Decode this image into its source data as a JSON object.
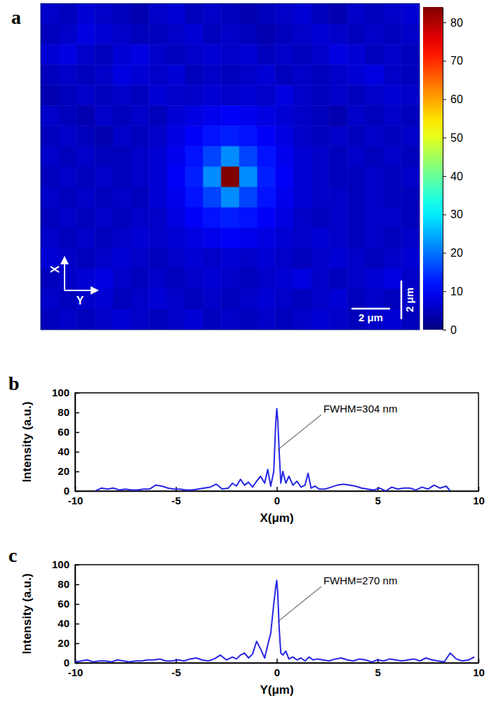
{
  "chart_data": [
    {
      "panel": "a",
      "type": "heatmap",
      "arrow_labels": [
        "X",
        "Y"
      ],
      "xlim": [
        0,
        19.6
      ],
      "ylim": [
        0,
        16.9
      ],
      "tick_labels": false,
      "cells": [
        [
          6,
          5,
          7,
          6,
          5,
          4,
          6,
          7,
          5,
          6,
          5,
          4,
          5,
          6,
          7,
          5,
          4,
          6,
          5,
          6,
          7
        ],
        [
          5,
          6,
          8,
          7,
          6,
          5,
          5,
          6,
          7,
          5,
          6,
          5,
          4,
          5,
          6,
          7,
          6,
          5,
          6,
          5,
          6
        ],
        [
          7,
          8,
          6,
          5,
          7,
          8,
          6,
          5,
          6,
          7,
          6,
          7,
          5,
          6,
          5,
          6,
          8,
          7,
          5,
          6,
          5
        ],
        [
          5,
          6,
          5,
          6,
          8,
          7,
          6,
          7,
          5,
          6,
          5,
          6,
          7,
          5,
          6,
          5,
          6,
          7,
          8,
          6,
          5
        ],
        [
          4,
          5,
          6,
          5,
          6,
          5,
          7,
          6,
          6,
          7,
          6,
          7,
          6,
          8,
          6,
          5,
          6,
          5,
          6,
          7,
          6
        ],
        [
          6,
          5,
          4,
          6,
          5,
          6,
          5,
          7,
          8,
          9,
          10,
          9,
          8,
          7,
          6,
          5,
          4,
          6,
          5,
          6,
          5
        ],
        [
          5,
          6,
          5,
          4,
          6,
          5,
          6,
          8,
          10,
          12,
          13,
          12,
          10,
          8,
          6,
          5,
          6,
          5,
          6,
          5,
          6
        ],
        [
          6,
          5,
          6,
          5,
          5,
          6,
          7,
          9,
          12,
          16,
          22,
          16,
          12,
          9,
          7,
          6,
          5,
          6,
          5,
          6,
          5
        ],
        [
          5,
          6,
          5,
          6,
          5,
          6,
          7,
          10,
          13,
          22,
          84,
          22,
          13,
          10,
          7,
          6,
          5,
          5,
          6,
          5,
          6
        ],
        [
          6,
          5,
          6,
          5,
          6,
          5,
          7,
          9,
          12,
          16,
          22,
          16,
          12,
          9,
          7,
          6,
          6,
          5,
          6,
          5,
          5
        ],
        [
          5,
          6,
          5,
          6,
          5,
          6,
          6,
          8,
          10,
          12,
          13,
          12,
          10,
          8,
          6,
          5,
          6,
          5,
          6,
          6,
          5
        ],
        [
          6,
          5,
          6,
          5,
          6,
          7,
          6,
          7,
          8,
          9,
          10,
          9,
          8,
          7,
          6,
          7,
          6,
          5,
          6,
          5,
          6
        ],
        [
          7,
          6,
          5,
          6,
          7,
          6,
          5,
          6,
          7,
          6,
          7,
          6,
          7,
          6,
          5,
          6,
          7,
          6,
          5,
          6,
          7
        ],
        [
          5,
          6,
          7,
          8,
          6,
          5,
          6,
          5,
          6,
          7,
          6,
          5,
          6,
          7,
          8,
          6,
          5,
          6,
          7,
          8,
          6
        ],
        [
          6,
          5,
          6,
          7,
          5,
          6,
          7,
          6,
          5,
          6,
          5,
          6,
          7,
          6,
          5,
          6,
          7,
          5,
          6,
          5,
          6
        ],
        [
          5,
          6,
          5,
          6,
          7,
          6,
          5,
          6,
          7,
          5,
          6,
          5,
          6,
          5,
          6,
          7,
          6,
          5,
          6,
          7,
          5
        ]
      ],
      "colorbar": {
        "range": [
          0,
          84
        ],
        "ticks": [
          0,
          10,
          20,
          30,
          40,
          50,
          60,
          70,
          80
        ]
      },
      "scale_bars": [
        {
          "label": "2 μm",
          "length": 2,
          "orientation": "horizontal"
        },
        {
          "label": "2 μm",
          "length": 2,
          "orientation": "vertical"
        }
      ]
    },
    {
      "panel": "b",
      "type": "line",
      "xlabel": "X(μm)",
      "ylabel": "Intensity (a.u.)",
      "x": [
        -9,
        -8.7,
        -8.4,
        -8.1,
        -7.8,
        -7.5,
        -7.2,
        -6.9,
        -6.6,
        -6.3,
        -6.0,
        -5.7,
        -5.4,
        -5.1,
        -4.8,
        -4.5,
        -4.2,
        -3.9,
        -3.6,
        -3.3,
        -3.0,
        -2.7,
        -2.4,
        -2.2,
        -2.0,
        -1.8,
        -1.6,
        -1.4,
        -1.2,
        -1.0,
        -0.8,
        -0.6,
        -0.45,
        -0.3,
        -0.15,
        -0.05,
        0,
        0.05,
        0.12,
        0.2,
        0.3,
        0.45,
        0.6,
        0.8,
        1.0,
        1.2,
        1.4,
        1.55,
        1.7,
        1.9,
        2.1,
        2.4,
        2.7,
        3.0,
        3.3,
        3.6,
        3.9,
        4.2,
        4.5,
        4.8,
        5.1,
        5.4,
        5.7,
        6.0,
        6.3,
        6.6,
        6.9,
        7.2,
        7.5,
        7.8,
        8.1,
        8.4,
        8.6
      ],
      "series": [
        {
          "color": "#2626e6",
          "values": [
            0,
            3,
            2,
            3,
            1,
            2,
            1,
            1,
            2,
            2,
            6,
            5,
            3,
            2,
            2,
            1,
            1,
            2,
            3,
            4,
            7,
            2,
            3,
            8,
            5,
            12,
            6,
            9,
            4,
            10,
            15,
            8,
            22,
            5,
            20,
            70,
            84,
            72,
            40,
            8,
            20,
            8,
            15,
            6,
            10,
            4,
            6,
            18,
            3,
            5,
            2,
            2,
            4,
            6,
            7,
            6,
            5,
            3,
            2,
            1,
            3,
            0,
            4,
            2,
            3,
            3,
            1,
            4,
            2,
            6,
            3,
            5,
            0
          ]
        }
      ],
      "xlim": [
        -10,
        10
      ],
      "xticks": [
        -10,
        -5,
        0,
        5,
        10
      ],
      "ylim": [
        0,
        100
      ],
      "yticks": [
        0,
        20,
        40,
        60,
        80,
        100
      ],
      "annotations": [
        {
          "text": "FWHM=304 nm",
          "x": 0.05,
          "y": 42
        }
      ]
    },
    {
      "panel": "c",
      "type": "line",
      "xlabel": "Y(μm)",
      "ylabel": "Intensity (a.u.)",
      "x": [
        -10,
        -9.7,
        -9.4,
        -9.1,
        -8.8,
        -8.5,
        -8.2,
        -7.9,
        -7.6,
        -7.3,
        -7.0,
        -6.7,
        -6.4,
        -6.1,
        -5.8,
        -5.5,
        -5.2,
        -4.9,
        -4.6,
        -4.3,
        -4.0,
        -3.7,
        -3.4,
        -3.1,
        -2.8,
        -2.5,
        -2.2,
        -2.0,
        -1.8,
        -1.6,
        -1.4,
        -1.2,
        -1.0,
        -0.8,
        -0.6,
        -0.45,
        -0.3,
        -0.15,
        -0.05,
        0,
        0.05,
        0.12,
        0.2,
        0.3,
        0.45,
        0.6,
        0.8,
        1.0,
        1.2,
        1.4,
        1.6,
        1.8,
        2.0,
        2.3,
        2.6,
        2.9,
        3.2,
        3.5,
        3.8,
        4.1,
        4.4,
        4.7,
        5.0,
        5.3,
        5.6,
        5.9,
        6.2,
        6.5,
        6.8,
        7.1,
        7.4,
        7.7,
        8.0,
        8.3,
        8.6,
        8.9,
        9.2,
        9.5,
        9.8
      ],
      "series": [
        {
          "color": "#2626e6",
          "values": [
            1,
            2,
            3,
            1,
            2,
            2,
            1,
            3,
            2,
            1,
            2,
            2,
            3,
            3,
            4,
            2,
            2,
            3,
            2,
            4,
            5,
            3,
            2,
            4,
            8,
            3,
            6,
            4,
            8,
            10,
            5,
            9,
            22,
            14,
            5,
            18,
            30,
            60,
            78,
            84,
            70,
            35,
            10,
            8,
            12,
            4,
            6,
            3,
            5,
            2,
            6,
            3,
            4,
            3,
            2,
            4,
            5,
            3,
            2,
            4,
            3,
            1,
            3,
            2,
            4,
            3,
            2,
            3,
            4,
            2,
            5,
            3,
            2,
            1,
            10,
            4,
            2,
            3,
            6
          ]
        }
      ],
      "xlim": [
        -10,
        10
      ],
      "xticks": [
        -10,
        -5,
        0,
        5,
        10
      ],
      "ylim": [
        0,
        100
      ],
      "yticks": [
        0,
        20,
        40,
        60,
        80,
        100
      ],
      "annotations": [
        {
          "text": "FWHM=270 nm",
          "x": 0.05,
          "y": 42
        }
      ]
    }
  ]
}
